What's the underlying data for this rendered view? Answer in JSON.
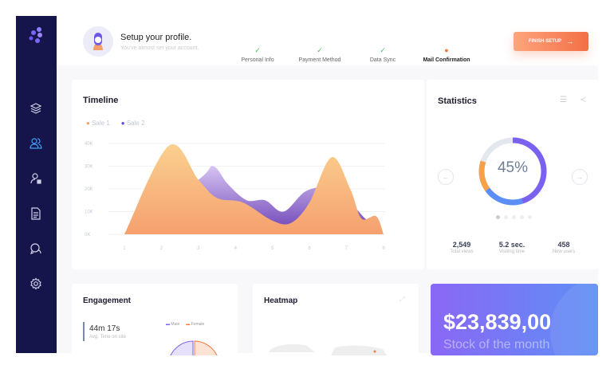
{
  "header": {
    "title": "Setup your profile.",
    "subtitle": "You've almost set your account.",
    "steps": [
      {
        "label": "Personal Info",
        "status": "done"
      },
      {
        "label": "Payment Method",
        "status": "done"
      },
      {
        "label": "Data Sync",
        "status": "done"
      },
      {
        "label": "Mail Confirmation",
        "status": "current"
      }
    ],
    "finish_label": "FINISH SETUP",
    "finish_icon": "arrow-right-icon"
  },
  "sidebar": {
    "items": [
      {
        "icon": "layers-icon"
      },
      {
        "icon": "users-icon",
        "active": true
      },
      {
        "icon": "user-profile-icon"
      },
      {
        "icon": "document-icon"
      },
      {
        "icon": "chat-icon"
      },
      {
        "icon": "gear-icon"
      }
    ]
  },
  "timeline": {
    "title": "Timeline"
  },
  "chart_data": {
    "type": "area",
    "title": "Timeline",
    "x_ticks": [
      "1",
      "2",
      "3",
      "4",
      "5",
      "6",
      "7",
      "8"
    ],
    "y_ticks": [
      "0K",
      "10K",
      "20K",
      "30K",
      "40K"
    ],
    "ylim": [
      0,
      40
    ],
    "grid": true,
    "legend": "top-left",
    "series": [
      {
        "name": "Sale 1",
        "color": "#f6a068",
        "points": [
          [
            1,
            0
          ],
          [
            2.2,
            39
          ],
          [
            3,
            24
          ],
          [
            3.5,
            16
          ],
          [
            4.2,
            14
          ],
          [
            5,
            6
          ],
          [
            5.5,
            5
          ],
          [
            6,
            14
          ],
          [
            6.6,
            34
          ],
          [
            7.1,
            20
          ],
          [
            7.4,
            7
          ],
          [
            7.8,
            8
          ],
          [
            8,
            0
          ]
        ]
      },
      {
        "name": "Sale 2",
        "color": "#5b4bd6",
        "points": [
          [
            1,
            0
          ],
          [
            3,
            24
          ],
          [
            3.4,
            30
          ],
          [
            3.8,
            22
          ],
          [
            4.3,
            15
          ],
          [
            4.8,
            15
          ],
          [
            5.3,
            10
          ],
          [
            5.9,
            19
          ],
          [
            6.5,
            20
          ],
          [
            7.2,
            12
          ],
          [
            7.5,
            7
          ],
          [
            8,
            0
          ]
        ]
      }
    ]
  },
  "statistics": {
    "title": "Statistics",
    "percent": "45%",
    "donut": {
      "purple": 45,
      "blue": 20,
      "orange": 15,
      "gray": 20
    },
    "page": 1,
    "pages": 5,
    "stats": [
      {
        "value": "2,549",
        "label": "Total views"
      },
      {
        "value": "5.2 sec.",
        "label": "Visiting time"
      },
      {
        "value": "458",
        "label": "New users"
      }
    ]
  },
  "engagement": {
    "title": "Engagement",
    "time": "44m 17s",
    "time_label": "Avg. Time on site",
    "legend": [
      "Male",
      "Female"
    ]
  },
  "heatmap": {
    "title": "Heatmap"
  },
  "stock": {
    "amount": "$23,839,00",
    "label": "Stock of the month"
  }
}
